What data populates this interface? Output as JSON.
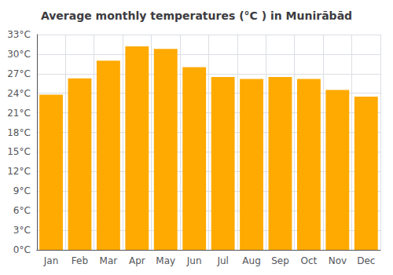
{
  "chart_data": {
    "type": "bar",
    "title": "Average monthly temperatures (°C ) in Munirābād",
    "categories": [
      "Jan",
      "Feb",
      "Mar",
      "Apr",
      "May",
      "Jun",
      "Jul",
      "Aug",
      "Sep",
      "Oct",
      "Nov",
      "Dec"
    ],
    "values": [
      23.8,
      26.3,
      29.0,
      31.2,
      30.8,
      28.0,
      26.5,
      26.2,
      26.5,
      26.2,
      24.5,
      23.5
    ],
    "color": "#FFAA00",
    "ylim": [
      0,
      33
    ],
    "yticks": [
      {
        "value": 0,
        "label": "0°C"
      },
      {
        "value": 3,
        "label": "3°C"
      },
      {
        "value": 6,
        "label": "6°C"
      },
      {
        "value": 9,
        "label": "9°C"
      },
      {
        "value": 12,
        "label": "12°C"
      },
      {
        "value": 15,
        "label": "15°C"
      },
      {
        "value": 18,
        "label": "18°C"
      },
      {
        "value": 21,
        "label": "21°C"
      },
      {
        "value": 24,
        "label": "24°C"
      },
      {
        "value": 27,
        "label": "27°C"
      },
      {
        "value": 30,
        "label": "30°C"
      },
      {
        "value": 33,
        "label": "33°C"
      }
    ],
    "grid": true
  }
}
